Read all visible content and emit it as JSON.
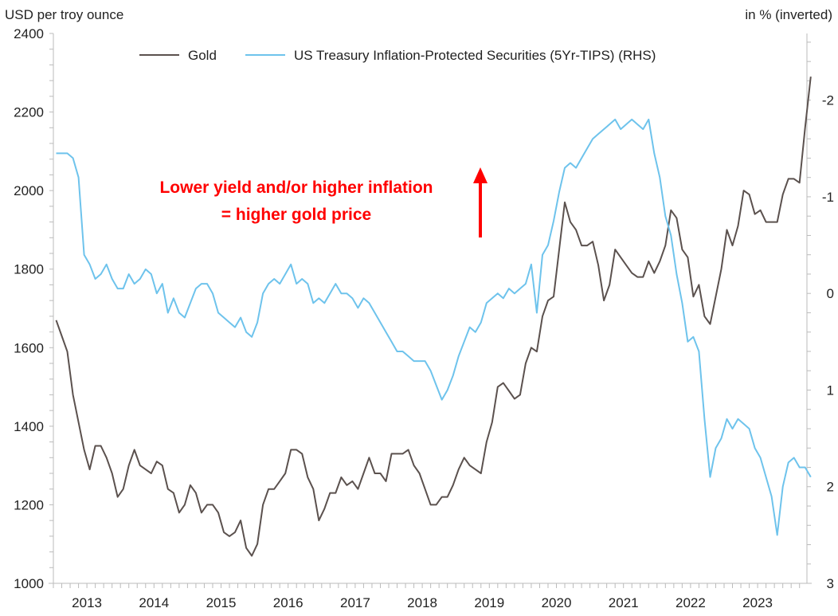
{
  "chart_data": {
    "type": "line",
    "title": "",
    "ylabel_left": "USD per troy ounce",
    "ylabel_right": "in % (inverted)",
    "ylim_left": [
      1000,
      2400
    ],
    "ylim_right": [
      3,
      -2.69
    ],
    "right_axis_inverted": true,
    "yticks_left": [
      "1000",
      "1200",
      "1400",
      "1600",
      "1800",
      "2000",
      "2200",
      "2400"
    ],
    "yticks_right": [
      "-2",
      "-1",
      "0",
      "1",
      "2",
      "3"
    ],
    "xticks": [
      "2013",
      "2014",
      "2015",
      "2016",
      "2017",
      "2018",
      "2019",
      "2020",
      "2021",
      "2022",
      "2023"
    ],
    "x_start": "2013-01",
    "x_frequency": "monthly",
    "legend_position": "top",
    "grid": false,
    "annotation": [
      "Lower yield and/or higher inflation",
      "= higher gold price"
    ],
    "annotation_color": "#ff0000",
    "series": [
      {
        "name": "Gold",
        "axis": "left",
        "color": "#5b514e",
        "values": [
          1670,
          1630,
          1590,
          1480,
          1410,
          1340,
          1290,
          1350,
          1350,
          1320,
          1280,
          1220,
          1240,
          1300,
          1340,
          1300,
          1290,
          1280,
          1310,
          1300,
          1240,
          1230,
          1180,
          1200,
          1250,
          1230,
          1180,
          1200,
          1200,
          1180,
          1130,
          1120,
          1130,
          1160,
          1090,
          1070,
          1100,
          1200,
          1240,
          1240,
          1260,
          1280,
          1340,
          1340,
          1330,
          1270,
          1240,
          1160,
          1190,
          1230,
          1230,
          1270,
          1250,
          1260,
          1240,
          1280,
          1320,
          1280,
          1280,
          1260,
          1330,
          1330,
          1330,
          1340,
          1300,
          1280,
          1240,
          1200,
          1200,
          1220,
          1220,
          1250,
          1290,
          1320,
          1300,
          1290,
          1280,
          1360,
          1410,
          1500,
          1510,
          1490,
          1470,
          1480,
          1560,
          1600,
          1590,
          1680,
          1720,
          1730,
          1850,
          1970,
          1920,
          1900,
          1860,
          1860,
          1870,
          1810,
          1720,
          1760,
          1850,
          1830,
          1810,
          1790,
          1780,
          1780,
          1820,
          1790,
          1820,
          1860,
          1950,
          1930,
          1850,
          1830,
          1730,
          1760,
          1680,
          1660,
          1730,
          1800,
          1900,
          1860,
          1910,
          2000,
          1990,
          1940,
          1950,
          1920,
          1920,
          1920,
          1990,
          2030,
          2030,
          2020,
          2160,
          2290
        ]
      },
      {
        "name": "US Treasury Inflation-Protected Securities (5Yr-TIPS) (RHS)",
        "axis": "right",
        "color": "#6ec3ec",
        "values": [
          -1.45,
          -1.45,
          -1.45,
          -1.4,
          -1.2,
          -0.4,
          -0.3,
          -0.15,
          -0.2,
          -0.3,
          -0.15,
          -0.05,
          -0.05,
          -0.2,
          -0.1,
          -0.15,
          -0.25,
          -0.2,
          0.0,
          -0.1,
          0.2,
          0.05,
          0.2,
          0.25,
          0.1,
          -0.05,
          -0.1,
          -0.1,
          0.0,
          0.2,
          0.25,
          0.3,
          0.35,
          0.25,
          0.4,
          0.45,
          0.3,
          0.0,
          -0.1,
          -0.15,
          -0.1,
          -0.2,
          -0.3,
          -0.1,
          -0.15,
          -0.1,
          0.1,
          0.05,
          0.1,
          0.0,
          -0.1,
          0.0,
          0.0,
          0.05,
          0.15,
          0.05,
          0.1,
          0.2,
          0.3,
          0.4,
          0.5,
          0.6,
          0.6,
          0.65,
          0.7,
          0.7,
          0.7,
          0.8,
          0.95,
          1.1,
          1.0,
          0.85,
          0.65,
          0.5,
          0.35,
          0.4,
          0.3,
          0.1,
          0.05,
          0.0,
          0.05,
          -0.05,
          0.0,
          -0.05,
          -0.1,
          -0.3,
          0.2,
          -0.4,
          -0.5,
          -0.75,
          -1.05,
          -1.3,
          -1.35,
          -1.3,
          -1.4,
          -1.5,
          -1.6,
          -1.65,
          -1.7,
          -1.75,
          -1.8,
          -1.7,
          -1.75,
          -1.8,
          -1.75,
          -1.7,
          -1.8,
          -1.45,
          -1.2,
          -0.8,
          -0.6,
          -0.2,
          0.1,
          0.5,
          0.45,
          0.6,
          1.3,
          1.9,
          1.6,
          1.5,
          1.3,
          1.4,
          1.3,
          1.35,
          1.4,
          1.6,
          1.7,
          1.9,
          2.1,
          2.5,
          2.0,
          1.75,
          1.7,
          1.8,
          1.8,
          1.9
        ]
      }
    ]
  }
}
